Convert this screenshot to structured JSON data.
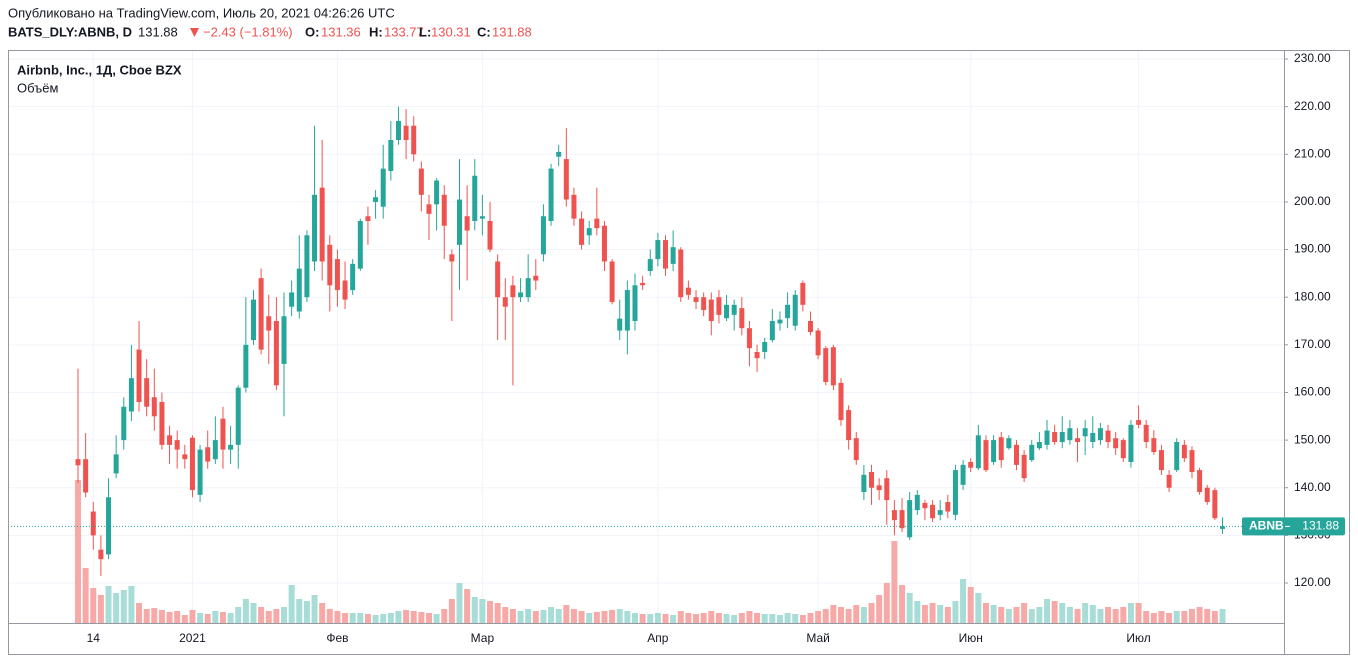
{
  "header": {
    "published": "Опубликовано на TradingView.com, Июль 20, 2021 04:26:26 UTC",
    "symbol": "BATS_DLY:ABNB, D",
    "change": "−2.43 (−1.81%)",
    "ohlc_labels": [
      "O:",
      "H:",
      "L:",
      "C:"
    ]
  },
  "chart_data": {
    "type": "candlestick",
    "title": "Airbnb, Inc., 1Д, Cboe BZX",
    "categories": [
      null,
      null,
      "14",
      null,
      null,
      null,
      null,
      null,
      null,
      null,
      null,
      null,
      null,
      null,
      null,
      "2021",
      null,
      null,
      null,
      null,
      null,
      null,
      null,
      null,
      null,
      null,
      null,
      null,
      null,
      null,
      null,
      null,
      null,
      null,
      "Фев",
      null,
      null,
      null,
      null,
      null,
      null,
      null,
      null,
      null,
      null,
      null,
      null,
      null,
      null,
      null,
      null,
      null,
      null,
      "Мар",
      null,
      null,
      null,
      null,
      null,
      null,
      null,
      null,
      null,
      null,
      null,
      null,
      null,
      null,
      null,
      null,
      null,
      null,
      null,
      null,
      null,
      null,
      "Апр",
      null,
      null,
      null,
      null,
      null,
      null,
      null,
      null,
      null,
      null,
      null,
      null,
      null,
      null,
      null,
      null,
      null,
      null,
      null,
      null,
      "Май",
      null,
      null,
      null,
      null,
      null,
      null,
      null,
      null,
      null,
      null,
      null,
      null,
      null,
      null,
      null,
      null,
      null,
      null,
      null,
      "Июн",
      null,
      null,
      null,
      null,
      null,
      null,
      null,
      null,
      null,
      null,
      null,
      null,
      null,
      null,
      null,
      null,
      null,
      null,
      null,
      null,
      null,
      "Июл",
      null,
      null,
      null,
      null,
      null,
      null,
      null,
      null,
      null,
      null,
      null
    ],
    "series": [
      {
        "name": "ABNB",
        "up_color": "#26a69a",
        "down_color": "#ef5350",
        "open": [
          146,
          146,
          135,
          127,
          126,
          143,
          150,
          156,
          169,
          163,
          159,
          158,
          151,
          150,
          147,
          150.5,
          138.5,
          148.5,
          146,
          154.5,
          148,
          149,
          161,
          171,
          184,
          176,
          175,
          166,
          178,
          177,
          180,
          187.5,
          203,
          191,
          188,
          183.5,
          181.5,
          186,
          197,
          200,
          199,
          206.5,
          213,
          216,
          216,
          207,
          199.5,
          199.5,
          201.5,
          189,
          191,
          197,
          196,
          196.5,
          196,
          187.5,
          180,
          182.5,
          180,
          180,
          184.5,
          189,
          196,
          209.5,
          209,
          201.5,
          196.5,
          193,
          196.5,
          195,
          187.5,
          173,
          173,
          175,
          183,
          185.5,
          188,
          192,
          187,
          190,
          182,
          180,
          180,
          179.5,
          180,
          175.6,
          176.3,
          177.7,
          173.5,
          168.5,
          168.5,
          171,
          174.5,
          175.6,
          174,
          183,
          175,
          173,
          169.3,
          169.5,
          162,
          156.3,
          150.4,
          139.1,
          143.3,
          140.5,
          142,
          135.3,
          135.3,
          129.6,
          135.3,
          136.8,
          136.4,
          134.3,
          137,
          134.3,
          140.6,
          145.4,
          144.1,
          150,
          145.4,
          150.6,
          148.3,
          149,
          146.9,
          145.8,
          148.3,
          149,
          151.7,
          149.6,
          150,
          150.4,
          150.8,
          149.6,
          150,
          152,
          150.4,
          150,
          145.4,
          154.2,
          153.2,
          150.4,
          147.9,
          142.7,
          143.7,
          149,
          147.9,
          143.7,
          140,
          139.5,
          131.36
        ],
        "high": [
          165,
          151.5,
          137,
          130,
          142,
          151,
          159,
          170,
          175,
          167,
          165,
          160,
          153,
          152,
          149,
          151,
          149,
          152,
          155,
          157,
          153,
          161.5,
          180,
          181.5,
          186,
          180.5,
          180,
          181,
          183.5,
          193,
          194,
          216,
          213,
          193,
          190,
          187.5,
          188,
          196.5,
          199,
          202.5,
          212,
          217,
          220,
          219.5,
          218,
          208.5,
          201.5,
          205,
          203.5,
          190,
          209,
          203.5,
          209,
          201.5,
          200,
          189,
          184,
          184.5,
          184,
          189,
          188,
          199.5,
          208,
          212,
          215.5,
          203,
          198,
          196,
          203,
          196,
          188,
          179.5,
          183.5,
          185,
          184.5,
          190,
          193.5,
          193,
          194,
          190.5,
          183.5,
          181.5,
          181,
          181,
          181.5,
          180.5,
          179.5,
          180,
          175,
          170,
          171.5,
          177.5,
          177,
          181,
          181.5,
          183.5,
          177,
          173.5,
          169.7,
          170,
          163,
          157.3,
          151.7,
          144.8,
          144.8,
          142,
          143.7,
          137.4,
          137.8,
          139.1,
          139.5,
          137.4,
          137.4,
          137.4,
          138.5,
          144.8,
          145.8,
          146.2,
          153.2,
          151,
          151,
          151.7,
          151,
          150,
          147.9,
          150,
          151.7,
          154.2,
          153.2,
          155,
          154.2,
          152.5,
          154.2,
          155,
          153.6,
          153.2,
          151.7,
          150.4,
          154.2,
          157.3,
          154.2,
          152.1,
          149,
          143.7,
          150.4,
          150,
          148.7,
          144.2,
          140.6,
          140,
          133.77
        ],
        "low": [
          141,
          138,
          127,
          121.5,
          125,
          142,
          148,
          154,
          156,
          155,
          152,
          148,
          145,
          144,
          144,
          138,
          137,
          144,
          145,
          144,
          145,
          144,
          160,
          170,
          168,
          166,
          160.5,
          155,
          176,
          175.5,
          179,
          185.5,
          183.5,
          177,
          178,
          177.5,
          180.5,
          185.5,
          191,
          196.5,
          196.5,
          204.5,
          212,
          209,
          208.5,
          198,
          192,
          194,
          188,
          175,
          181.5,
          183.5,
          194,
          193,
          189.5,
          171,
          171,
          161.5,
          179,
          179,
          181.5,
          187.5,
          195,
          207.5,
          199,
          195,
          190,
          191,
          193,
          185.5,
          178.5,
          171,
          168,
          173,
          181.5,
          184.5,
          186.5,
          184.5,
          185.5,
          179,
          179.5,
          177.5,
          176,
          172,
          174.5,
          175,
          173,
          172,
          165.5,
          164.3,
          167,
          170.5,
          173,
          173.5,
          173,
          177,
          172,
          167,
          161.5,
          160.5,
          153,
          148,
          144.8,
          137.4,
          136.4,
          137.4,
          132.2,
          130,
          130.7,
          129,
          134.3,
          133.2,
          132.8,
          133.2,
          133.6,
          133.2,
          139.5,
          143.3,
          143.7,
          143.3,
          144.8,
          144.2,
          148,
          143.7,
          141.2,
          145.4,
          147.9,
          148,
          149,
          148.3,
          149,
          145.4,
          146.9,
          148.3,
          149,
          148.3,
          146.9,
          145.4,
          144.2,
          152.5,
          148.3,
          146.9,
          142.7,
          139.1,
          143.3,
          145.4,
          142,
          138.5,
          136.4,
          133.2,
          130.31
        ],
        "close": [
          144.7,
          139,
          130,
          125,
          138,
          147,
          157,
          163,
          158,
          157,
          155,
          149,
          149,
          148,
          146,
          139.5,
          148,
          145.5,
          150,
          148,
          149,
          161,
          170,
          179.5,
          169,
          173,
          161.5,
          176,
          181,
          186,
          193,
          201.5,
          187.5,
          182.5,
          181.5,
          179.5,
          187,
          196,
          196,
          201,
          207,
          213,
          217,
          213,
          210,
          201.5,
          197.5,
          204.5,
          195,
          187.5,
          200.5,
          194,
          205.5,
          197,
          190,
          180,
          178,
          180,
          181,
          184,
          183.5,
          197,
          207,
          210.5,
          200.5,
          196.5,
          191,
          194.5,
          194.5,
          187.5,
          179,
          175.5,
          181.5,
          182.5,
          182.5,
          188,
          192,
          186,
          190.5,
          180,
          180.5,
          179,
          177.3,
          175,
          176.3,
          178.4,
          178.4,
          173.5,
          169.3,
          167.2,
          170.6,
          175,
          175.3,
          178.4,
          180.5,
          178.4,
          172.7,
          167.8,
          162.2,
          161.5,
          154.2,
          150,
          145.8,
          142.7,
          140,
          139.5,
          137.4,
          133.2,
          131.5,
          137.4,
          138.5,
          135.7,
          133.6,
          135.3,
          135,
          143.7,
          144.8,
          144.2,
          151,
          143.7,
          150,
          145.8,
          150.4,
          144.8,
          142,
          149,
          149.6,
          152,
          149.6,
          151.7,
          152.5,
          149.6,
          152.5,
          151.5,
          152.5,
          149.6,
          148.3,
          146.2,
          153.2,
          153.2,
          149.6,
          147.5,
          143.7,
          140,
          149.6,
          146.2,
          143.3,
          139.1,
          137,
          133.6,
          131.88
        ]
      }
    ],
    "volume": {
      "name": "Объём",
      "up_color": "#a8dcd6",
      "down_color": "#f7a9a7",
      "values": [
        71.5,
        27.5,
        17.5,
        14,
        18.5,
        15,
        16.5,
        18.5,
        10,
        7,
        7.5,
        6.5,
        5.5,
        6,
        4,
        6.5,
        5,
        4.5,
        6,
        5.5,
        5,
        8,
        12,
        10,
        8,
        6,
        7,
        8,
        19,
        12,
        11,
        14,
        10,
        7,
        6,
        5,
        5,
        5,
        4.5,
        4,
        4.5,
        5,
        6,
        6.5,
        6,
        5.5,
        5,
        4.5,
        7,
        12,
        20,
        17,
        13,
        12,
        11,
        10,
        8,
        7,
        6,
        7,
        6,
        6.5,
        8,
        7,
        9,
        7,
        6,
        5,
        5.5,
        6,
        6.5,
        7,
        6,
        5,
        4.5,
        4.5,
        5,
        4.5,
        4,
        6,
        5,
        4.5,
        5,
        6,
        5,
        4.5,
        4,
        5,
        6,
        5,
        4.5,
        4.5,
        4,
        5,
        4.5,
        4,
        5,
        6,
        7,
        9,
        8,
        7,
        9,
        8,
        10,
        14,
        20,
        41,
        19,
        15,
        11,
        9,
        10,
        9,
        8,
        11,
        22,
        18,
        15,
        10,
        9,
        8,
        7,
        8,
        10,
        7,
        8,
        12,
        11,
        10,
        8,
        7,
        10,
        9,
        7,
        8,
        7,
        8,
        10,
        10,
        6,
        5,
        6,
        5,
        6,
        6,
        7,
        8,
        7,
        6,
        7
      ],
      "vlim": [
        0,
        286.5
      ]
    },
    "ylim": [
      111.6,
      231.9
    ],
    "yticks": [
      {
        "value": 120,
        "label": "120.00"
      },
      {
        "value": 130,
        "label": "130.00"
      },
      {
        "value": 140,
        "label": "140.00"
      },
      {
        "value": 150,
        "label": "150.00"
      },
      {
        "value": 160,
        "label": "160.00"
      },
      {
        "value": 170,
        "label": "170.00"
      },
      {
        "value": 180,
        "label": "180.00"
      },
      {
        "value": 190,
        "label": "190.00"
      },
      {
        "value": 200,
        "label": "200.00"
      },
      {
        "value": 210,
        "label": "210.00"
      },
      {
        "value": 220,
        "label": "220.00"
      },
      {
        "value": 230,
        "label": "230.00"
      }
    ],
    "grid": true
  }
}
